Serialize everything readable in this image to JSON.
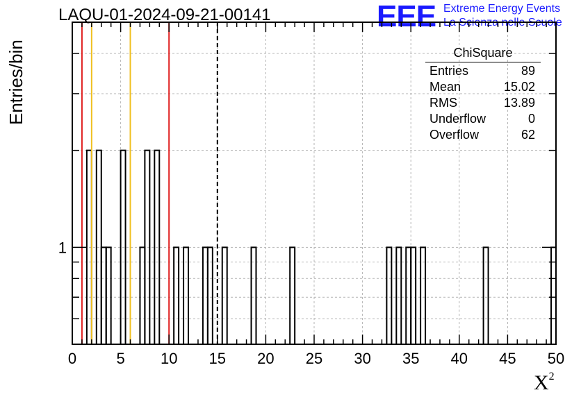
{
  "chart_data": {
    "type": "bar",
    "title": "LAQU-01-2024-09-21-00141",
    "xlabel": "X",
    "xlabel_superscript": "2",
    "ylabel": "Entries/bin",
    "xlim": [
      0,
      50
    ],
    "ylim": [
      0.5,
      5
    ],
    "yscale": "log",
    "bin_width": 0.5,
    "x_ticks": [
      0,
      5,
      10,
      15,
      20,
      25,
      30,
      35,
      40,
      45,
      50
    ],
    "y_tick_labels": [
      {
        "value": 1,
        "label": "1"
      }
    ],
    "grid": true,
    "bins": [
      {
        "x": 1.5,
        "value": 2
      },
      {
        "x": 2.5,
        "value": 2
      },
      {
        "x": 3.0,
        "value": 1
      },
      {
        "x": 3.5,
        "value": 1
      },
      {
        "x": 5.0,
        "value": 2
      },
      {
        "x": 7.0,
        "value": 1
      },
      {
        "x": 7.5,
        "value": 2
      },
      {
        "x": 8.5,
        "value": 2
      },
      {
        "x": 10.5,
        "value": 1
      },
      {
        "x": 11.5,
        "value": 1
      },
      {
        "x": 13.5,
        "value": 1
      },
      {
        "x": 14.0,
        "value": 1
      },
      {
        "x": 15.5,
        "value": 1
      },
      {
        "x": 18.5,
        "value": 1
      },
      {
        "x": 22.5,
        "value": 1
      },
      {
        "x": 32.5,
        "value": 1
      },
      {
        "x": 33.5,
        "value": 1
      },
      {
        "x": 34.5,
        "value": 1
      },
      {
        "x": 35.0,
        "value": 1
      },
      {
        "x": 36.0,
        "value": 1
      },
      {
        "x": 42.5,
        "value": 1
      },
      {
        "x": 49.5,
        "value": 1
      }
    ],
    "reference_lines": [
      {
        "x": 1,
        "color": "#e02020",
        "style": "solid"
      },
      {
        "x": 2,
        "color": "#f0c020",
        "style": "solid"
      },
      {
        "x": 6,
        "color": "#f0c020",
        "style": "solid"
      },
      {
        "x": 10,
        "color": "#e02020",
        "style": "solid"
      },
      {
        "x": 15,
        "color": "#000000",
        "style": "dashed"
      }
    ]
  },
  "stats": {
    "title": "ChiSquare",
    "rows": [
      {
        "label": "Entries",
        "value": "89"
      },
      {
        "label": "Mean",
        "value": "15.02"
      },
      {
        "label": "RMS",
        "value": "13.89"
      },
      {
        "label": "Underflow",
        "value": "0"
      },
      {
        "label": "Overflow",
        "value": "62"
      }
    ]
  },
  "logo": {
    "mark": "EEE",
    "line1": "Extreme Energy Events",
    "line2": "La Scienza nelle Scuole"
  }
}
